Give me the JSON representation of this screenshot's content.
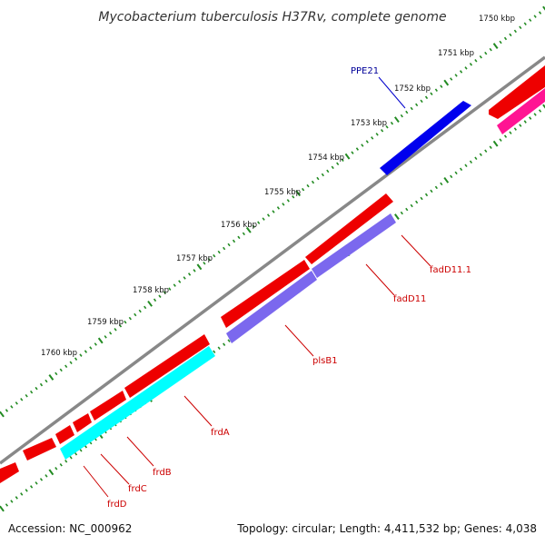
{
  "title": "Mycobacterium tuberculosis H37Rv, complete genome",
  "footer": {
    "accession": "Accession: NC_000962",
    "topology": "Topology: circular; Length: 4,411,532 bp; Genes: 4,038"
  },
  "ticks": [
    "1750 kbp",
    "1751 kbp",
    "1752 kbp",
    "1753 kbp",
    "1754 kbp",
    "1755 kbp",
    "1756 kbp",
    "1757 kbp",
    "1758 kbp",
    "1759 kbp",
    "1760 kbp"
  ],
  "genes": {
    "forward": [
      {
        "label": "PPE21",
        "color": "#0000ee"
      }
    ],
    "reverse": [
      {
        "label": "fadD11.1",
        "color": "#ee0000"
      },
      {
        "label": "fadD11",
        "color": "#7b68ee"
      },
      {
        "label": "plsB1",
        "color": "#ee0000"
      },
      {
        "label": "frdA",
        "color": "#00ffff"
      },
      {
        "label": "frdB",
        "color": "#ee0000"
      },
      {
        "label": "frdC",
        "color": "#ee0000"
      },
      {
        "label": "frdD",
        "color": "#ee0000"
      }
    ]
  },
  "colors": {
    "backbone": "#888888",
    "ticks": "#228b22",
    "forward_label": "#000099",
    "reverse_label": "#cc0000",
    "red_gene": "#ee0000",
    "pink_gene": "#ff1493",
    "purple_gene": "#7b68ee",
    "cyan_gene": "#00ffff",
    "blue_gene": "#0000ee"
  }
}
